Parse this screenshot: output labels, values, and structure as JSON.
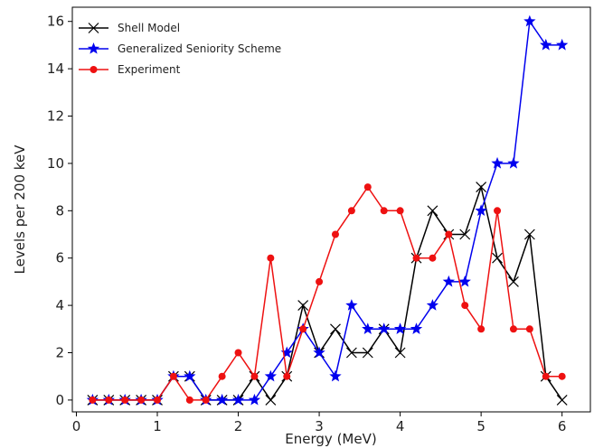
{
  "chart_data": {
    "type": "line",
    "xlabel": "Energy (MeV)",
    "ylabel": "Levels per 200 keV",
    "xlim": [
      -0.05,
      6.35
    ],
    "ylim": [
      -0.5,
      16.6
    ],
    "xticks": [
      0,
      1,
      2,
      3,
      4,
      5,
      6
    ],
    "yticks": [
      0,
      2,
      4,
      6,
      8,
      10,
      12,
      14,
      16
    ],
    "legend_position": "top-left",
    "grid": false,
    "x": [
      0.2,
      0.4,
      0.6,
      0.8,
      1.0,
      1.2,
      1.4,
      1.6,
      1.8,
      2.0,
      2.2,
      2.4,
      2.6,
      2.8,
      3.0,
      3.2,
      3.4,
      3.6,
      3.8,
      4.0,
      4.2,
      4.4,
      4.6,
      4.8,
      5.0,
      5.2,
      5.4,
      5.6,
      5.8,
      6.0
    ],
    "series": [
      {
        "name": "Shell Model",
        "color": "#000000",
        "marker": "x",
        "values": [
          0,
          0,
          0,
          0,
          0,
          1,
          1,
          0,
          0,
          0,
          1,
          0,
          1,
          4,
          2,
          3,
          2,
          2,
          3,
          2,
          6,
          8,
          7,
          7,
          9,
          6,
          5,
          7,
          1,
          0
        ]
      },
      {
        "name": "Generalized Seniority Scheme",
        "color": "#0000ee",
        "marker": "star",
        "values": [
          0,
          0,
          0,
          0,
          0,
          1,
          1,
          0,
          0,
          0,
          0,
          1,
          2,
          3,
          2,
          1,
          4,
          3,
          3,
          3,
          3,
          4,
          5,
          5,
          8,
          10,
          10,
          16,
          15,
          15
        ]
      },
      {
        "name": "Experiment",
        "color": "#ee1111",
        "marker": "circle",
        "values": [
          0,
          0,
          0,
          0,
          0,
          1,
          0,
          0,
          1,
          2,
          1,
          6,
          1,
          3,
          5,
          7,
          8,
          9,
          8,
          8,
          6,
          6,
          7,
          4,
          3,
          8,
          3,
          3,
          1,
          1
        ]
      }
    ]
  }
}
